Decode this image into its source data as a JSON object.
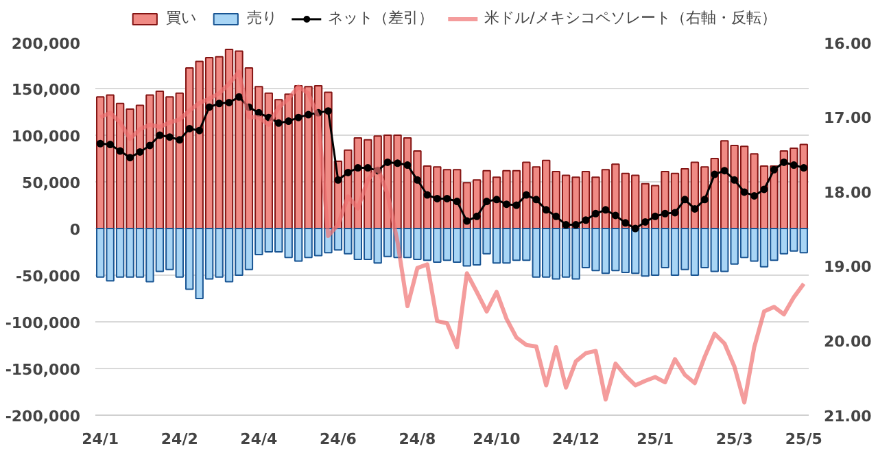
{
  "chart_data": {
    "type": "bar",
    "stacked": true,
    "grid": "y",
    "legend": "top",
    "categories": [
      "24/1",
      null,
      null,
      null,
      null,
      null,
      null,
      null,
      "24/2",
      null,
      null,
      null,
      null,
      null,
      null,
      null,
      "24/4",
      null,
      null,
      null,
      null,
      null,
      null,
      null,
      "24/6",
      null,
      null,
      null,
      null,
      null,
      null,
      null,
      "24/8",
      null,
      null,
      null,
      null,
      null,
      null,
      null,
      "24/10",
      null,
      null,
      null,
      null,
      null,
      null,
      null,
      "24/12",
      null,
      null,
      null,
      null,
      null,
      null,
      null,
      "25/1",
      null,
      null,
      null,
      null,
      null,
      null,
      null,
      "25/3",
      null,
      null,
      null,
      null,
      null,
      null,
      "25/5"
    ],
    "ylim": [
      -200000,
      200000
    ],
    "yticks": [
      {
        "value": -200000,
        "label": "-200,000"
      },
      {
        "value": -150000,
        "label": "-150,000"
      },
      {
        "value": -100000,
        "label": "-100,000"
      },
      {
        "value": -50000,
        "label": "-50,000"
      },
      {
        "value": 0,
        "label": "0"
      },
      {
        "value": 50000,
        "label": "50,000"
      },
      {
        "value": 100000,
        "label": "100,000"
      },
      {
        "value": 150000,
        "label": "150,000"
      },
      {
        "value": 200000,
        "label": "200,000"
      }
    ],
    "y2lim": [
      21,
      16
    ],
    "y2ticks": [
      {
        "value": 16,
        "label": "16.00"
      },
      {
        "value": 17,
        "label": "17.00"
      },
      {
        "value": 18,
        "label": "18.00"
      },
      {
        "value": 19,
        "label": "19.00"
      },
      {
        "value": 20,
        "label": "20.00"
      },
      {
        "value": 21,
        "label": "21.00"
      }
    ],
    "series": [
      {
        "name": "買い",
        "color": "#f08a84",
        "values": [
          141000,
          143000,
          134000,
          128000,
          132000,
          143000,
          147000,
          141000,
          145000,
          172000,
          179000,
          183000,
          184000,
          192000,
          190000,
          172000,
          152000,
          145000,
          138000,
          144000,
          153000,
          152000,
          153000,
          146000,
          72000,
          84000,
          97000,
          95000,
          99000,
          100000,
          100000,
          97000,
          83000,
          67000,
          66000,
          63000,
          63000,
          49000,
          52000,
          62000,
          55000,
          62000,
          62000,
          71000,
          66000,
          73000,
          61000,
          57000,
          55000,
          61000,
          55000,
          63000,
          69000,
          59000,
          57000,
          48000,
          46000,
          61000,
          59000,
          64000,
          71000,
          66000,
          75000,
          94000,
          89000,
          88000,
          80000,
          67000,
          67000,
          83000,
          86000,
          90000
        ]
      },
      {
        "name": "売り",
        "color": "#a8d5f5",
        "values": [
          -52000,
          -56000,
          -52000,
          -52000,
          -52000,
          -57000,
          -46000,
          -44000,
          -52000,
          -65000,
          -75000,
          -54000,
          -52000,
          -57000,
          -50000,
          -44000,
          -28000,
          -25000,
          -25000,
          -31000,
          -35000,
          -31000,
          -29000,
          -26000,
          -23000,
          -27000,
          -33000,
          -33000,
          -37000,
          -30000,
          -31000,
          -31000,
          -33000,
          -34000,
          -36000,
          -34000,
          -36000,
          -40000,
          -39000,
          -27000,
          -37000,
          -37000,
          -34000,
          -34000,
          -52000,
          -52000,
          -54000,
          -52000,
          -54000,
          -42000,
          -45000,
          -48000,
          -45000,
          -47000,
          -48000,
          -51000,
          -50000,
          -42000,
          -50000,
          -44000,
          -50000,
          -42000,
          -46000,
          -46000,
          -38000,
          -31000,
          -35000,
          -41000,
          -34000,
          -27000,
          -24000,
          -26000
        ]
      },
      {
        "name": "ネット（差引）",
        "type": "line",
        "marker": "circle",
        "color": "#000000",
        "values": [
          91000,
          90000,
          83000,
          76000,
          82000,
          89000,
          100000,
          98000,
          95000,
          107000,
          105000,
          130000,
          134000,
          135000,
          141000,
          130000,
          124000,
          119000,
          113000,
          115000,
          119000,
          122000,
          124000,
          126000,
          52000,
          60000,
          65000,
          65000,
          62000,
          71000,
          70000,
          68000,
          52000,
          36000,
          32000,
          32000,
          29000,
          8000,
          13000,
          29000,
          31000,
          26000,
          25000,
          36000,
          31000,
          20000,
          13000,
          4000,
          4000,
          9000,
          16000,
          20000,
          14000,
          6000,
          0,
          7000,
          13000,
          16000,
          17000,
          31000,
          21000,
          31000,
          58000,
          62000,
          52000,
          39000,
          35000,
          42000,
          63000,
          71000,
          68000,
          65000
        ]
      },
      {
        "name": "米ドル/メキシコペソレート（右軸・反転）",
        "type": "line",
        "axis": "y2",
        "color": "#f07272",
        "values": [
          17.01,
          16.95,
          17.08,
          17.3,
          17.17,
          17.11,
          17.14,
          17.08,
          17.04,
          16.92,
          16.82,
          16.76,
          16.69,
          16.56,
          16.4,
          17.01,
          17.01,
          17.11,
          16.88,
          16.76,
          16.6,
          16.69,
          17.01,
          18.6,
          18.45,
          18.07,
          18.23,
          17.85,
          17.69,
          18.04,
          18.68,
          19.54,
          19.03,
          18.98,
          19.74,
          19.77,
          20.09,
          19.1,
          19.35,
          19.61,
          19.35,
          19.71,
          19.96,
          20.06,
          20.08,
          20.6,
          20.09,
          20.63,
          20.28,
          20.17,
          20.14,
          20.79,
          20.31,
          20.47,
          20.6,
          20.54,
          20.49,
          20.56,
          20.25,
          20.46,
          20.57,
          20.22,
          19.91,
          20.04,
          20.35,
          20.83,
          20.09,
          19.61,
          19.55,
          19.65,
          19.42,
          19.24
        ]
      }
    ]
  }
}
